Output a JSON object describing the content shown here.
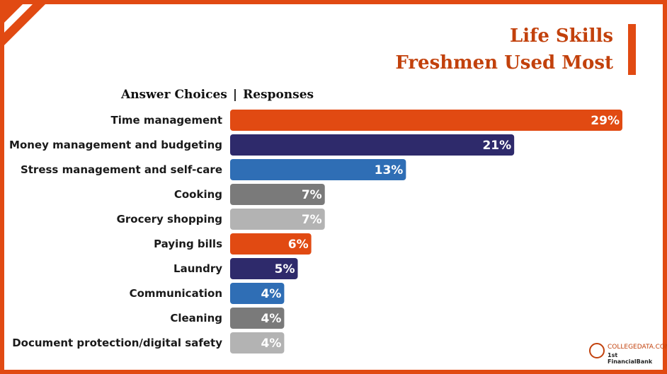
{
  "title": {
    "line1": "Life Skills",
    "line2": "Freshmen Used Most"
  },
  "header": {
    "left": "Answer Choices",
    "divider": "|",
    "right": "Responses"
  },
  "logo": {
    "line1": "COLLEGEDATA.COM",
    "line2": "1st FinancialBank"
  },
  "chart_data": {
    "type": "bar",
    "orientation": "horizontal",
    "categories": [
      "Time management",
      "Money management and budgeting",
      "Stress management and self-care",
      "Cooking",
      "Grocery shopping",
      "Paying bills",
      "Laundry",
      "Communication",
      "Cleaning",
      "Document protection/digital safety"
    ],
    "values": [
      29,
      21,
      13,
      7,
      7,
      6,
      5,
      4,
      4,
      4
    ],
    "labels": [
      "29%",
      "21%",
      "13%",
      "7%",
      "7%",
      "6%",
      "5%",
      "4%",
      "4%",
      "4%"
    ],
    "colors": [
      "#e14a12",
      "#2e2a6b",
      "#2f6eb5",
      "#7a7a7a",
      "#b3b3b3",
      "#e14a12",
      "#2e2a6b",
      "#2f6eb5",
      "#7a7a7a",
      "#b3b3b3"
    ],
    "xlim": [
      0,
      29
    ],
    "grid": false,
    "legend": "none"
  }
}
